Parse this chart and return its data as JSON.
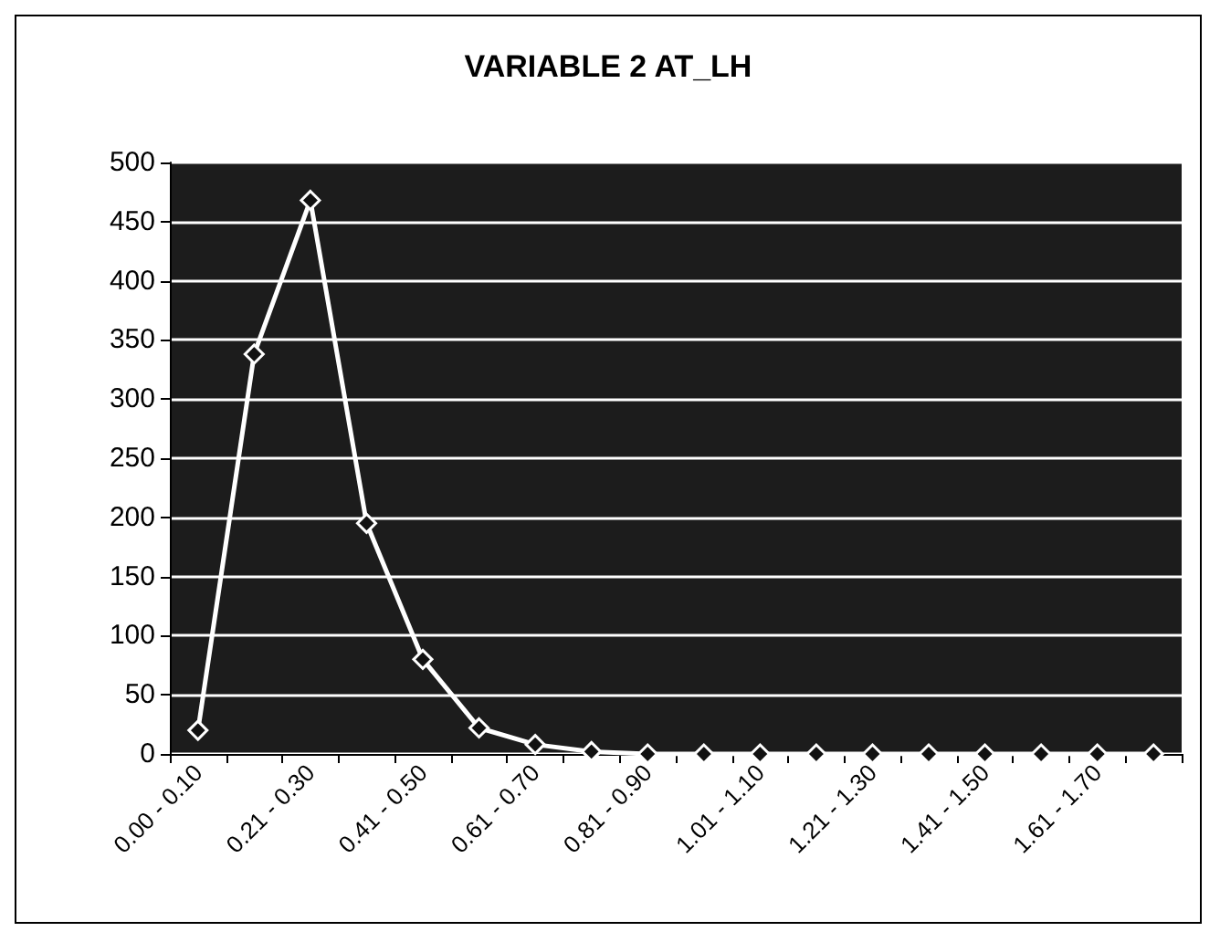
{
  "chart_data": {
    "type": "line",
    "title": "VARIABLE 2 AT_LH",
    "categories": [
      "0.00 - 0.10",
      null,
      "0.21 - 0.30",
      null,
      "0.41 - 0.50",
      null,
      "0.61 - 0.70",
      null,
      "0.81 - 0.90",
      null,
      "1.01 - 1.10",
      null,
      "1.21 - 1.30",
      null,
      "1.41 - 1.50",
      null,
      "1.61 - 1.70",
      null
    ],
    "series": [
      {
        "color": "#ffffff",
        "values": [
          20,
          338,
          468,
          195,
          80,
          22,
          8,
          2,
          0,
          0,
          0,
          0,
          0,
          0,
          0,
          0,
          0,
          0
        ]
      }
    ],
    "ylim": [
      0,
      500
    ],
    "yticks": [
      0,
      50,
      100,
      150,
      200,
      250,
      300,
      350,
      400,
      450,
      500
    ],
    "grid": "y",
    "marker": "diamond"
  }
}
